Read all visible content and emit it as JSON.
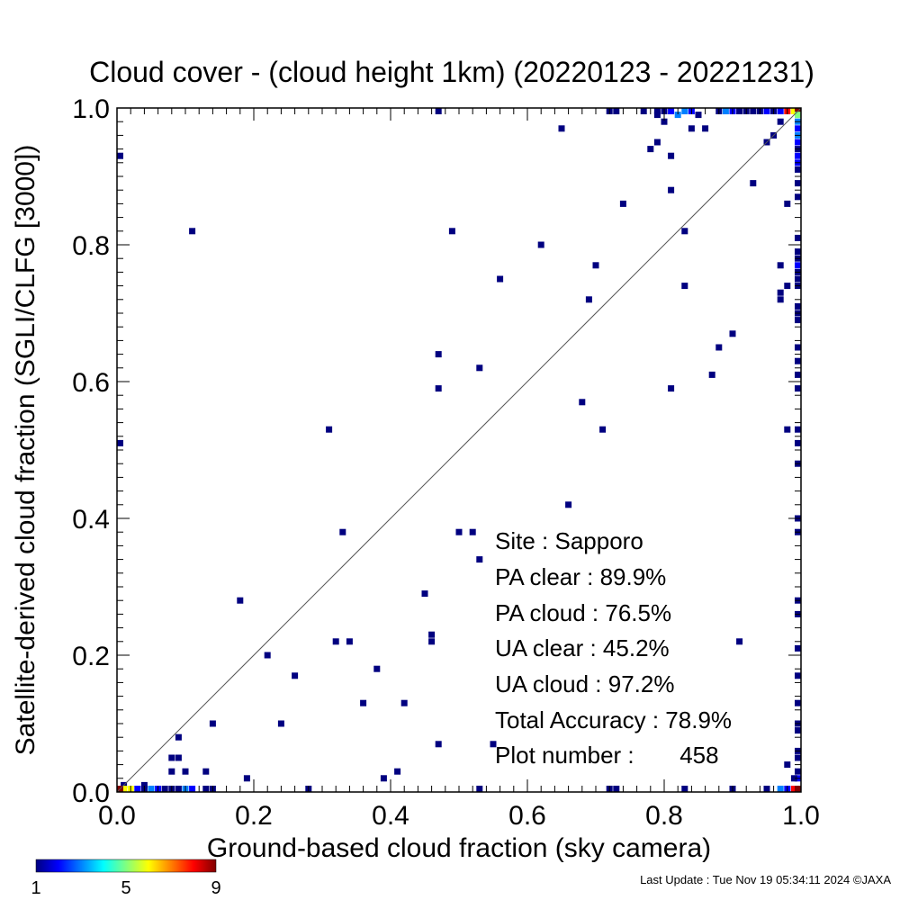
{
  "chart_data": {
    "type": "heatmap",
    "title": "Cloud cover - (cloud height 1km)  (20220123 - 20221231)",
    "xlabel": "Ground-based cloud fraction (sky camera)",
    "ylabel": "Satellite-derived cloud fraction (SGLI/CLFG [3000])",
    "xlim": [
      0,
      1
    ],
    "ylim": [
      0,
      1
    ],
    "xticks": [
      "0.0",
      "0.2",
      "0.4",
      "0.6",
      "0.8",
      "1.0"
    ],
    "yticks": [
      "0.0",
      "0.2",
      "0.4",
      "0.6",
      "0.8",
      "1.0"
    ],
    "grid": false,
    "reference_line": "y = x",
    "colorbar": {
      "range": [
        1,
        9
      ],
      "tick_labels": [
        "1",
        "5",
        "9"
      ],
      "colors": [
        "#000080",
        "#0000ff",
        "#0080ff",
        "#00ffff",
        "#80ff80",
        "#ffff00",
        "#ff8000",
        "#ff0000",
        "#800000"
      ]
    },
    "points": [
      {
        "x": 0.11,
        "y": 0.82,
        "c": 1
      },
      {
        "x": 0.49,
        "y": 0.82,
        "c": 1
      },
      {
        "x": 0.62,
        "y": 0.8,
        "c": 1
      },
      {
        "x": 0.56,
        "y": 0.75,
        "c": 1
      },
      {
        "x": 0.7,
        "y": 0.77,
        "c": 1
      },
      {
        "x": 0.69,
        "y": 0.72,
        "c": 1
      },
      {
        "x": 0.74,
        "y": 0.86,
        "c": 1
      },
      {
        "x": 0.83,
        "y": 0.82,
        "c": 1
      },
      {
        "x": 0.83,
        "y": 0.74,
        "c": 1
      },
      {
        "x": 0.81,
        "y": 0.88,
        "c": 1
      },
      {
        "x": 0.81,
        "y": 0.93,
        "c": 1
      },
      {
        "x": 0.78,
        "y": 0.94,
        "c": 1
      },
      {
        "x": 0.79,
        "y": 0.95,
        "c": 1
      },
      {
        "x": 0.65,
        "y": 0.97,
        "c": 1
      },
      {
        "x": 0.93,
        "y": 0.89,
        "c": 1
      },
      {
        "x": 0.47,
        "y": 0.64,
        "c": 1
      },
      {
        "x": 0.47,
        "y": 0.59,
        "c": 1
      },
      {
        "x": 0.53,
        "y": 0.62,
        "c": 1
      },
      {
        "x": 0.68,
        "y": 0.57,
        "c": 1
      },
      {
        "x": 0.71,
        "y": 0.53,
        "c": 1
      },
      {
        "x": 0.81,
        "y": 0.59,
        "c": 1
      },
      {
        "x": 0.87,
        "y": 0.61,
        "c": 1
      },
      {
        "x": 0.88,
        "y": 0.65,
        "c": 1
      },
      {
        "x": 0.9,
        "y": 0.67,
        "c": 1
      },
      {
        "x": 0.31,
        "y": 0.53,
        "c": 1
      },
      {
        "x": 0.66,
        "y": 0.42,
        "c": 1
      },
      {
        "x": 0.33,
        "y": 0.38,
        "c": 1
      },
      {
        "x": 0.5,
        "y": 0.38,
        "c": 1
      },
      {
        "x": 0.52,
        "y": 0.38,
        "c": 1
      },
      {
        "x": 0.53,
        "y": 0.34,
        "c": 1
      },
      {
        "x": 0.45,
        "y": 0.29,
        "c": 1
      },
      {
        "x": 0.18,
        "y": 0.28,
        "c": 1
      },
      {
        "x": 0.46,
        "y": 0.23,
        "c": 1
      },
      {
        "x": 0.46,
        "y": 0.22,
        "c": 1
      },
      {
        "x": 0.32,
        "y": 0.22,
        "c": 1
      },
      {
        "x": 0.34,
        "y": 0.22,
        "c": 1
      },
      {
        "x": 0.22,
        "y": 0.2,
        "c": 1
      },
      {
        "x": 0.38,
        "y": 0.18,
        "c": 1
      },
      {
        "x": 0.26,
        "y": 0.17,
        "c": 1
      },
      {
        "x": 0.36,
        "y": 0.13,
        "c": 1
      },
      {
        "x": 0.42,
        "y": 0.13,
        "c": 1
      },
      {
        "x": 0.14,
        "y": 0.1,
        "c": 1
      },
      {
        "x": 0.24,
        "y": 0.1,
        "c": 1
      },
      {
        "x": 0.09,
        "y": 0.08,
        "c": 1
      },
      {
        "x": 0.47,
        "y": 0.07,
        "c": 1
      },
      {
        "x": 0.55,
        "y": 0.07,
        "c": 1
      },
      {
        "x": 0.91,
        "y": 0.22,
        "c": 1
      },
      {
        "x": 0.08,
        "y": 0.05,
        "c": 1
      },
      {
        "x": 0.09,
        "y": 0.05,
        "c": 1
      },
      {
        "x": 0.08,
        "y": 0.03,
        "c": 1
      },
      {
        "x": 0.1,
        "y": 0.03,
        "c": 1
      },
      {
        "x": 0.13,
        "y": 0.03,
        "c": 1
      },
      {
        "x": 0.19,
        "y": 0.02,
        "c": 1
      },
      {
        "x": 0.39,
        "y": 0.02,
        "c": 1
      },
      {
        "x": 0.41,
        "y": 0.03,
        "c": 1
      },
      {
        "x": 0.04,
        "y": 0.01,
        "c": 1
      },
      {
        "x": 0.01,
        "y": 0.01,
        "c": 1
      },
      {
        "x": 0.0,
        "y": 0.51,
        "c": 1
      },
      {
        "x": 0.0,
        "y": 0.93,
        "c": 1
      },
      {
        "x": 0.47,
        "y": 1.0,
        "c": 1
      },
      {
        "x": 0.97,
        "y": 0.98,
        "c": 1
      },
      {
        "x": 0.96,
        "y": 0.96,
        "c": 1
      },
      {
        "x": 0.95,
        "y": 0.95,
        "c": 1
      },
      {
        "x": 0.98,
        "y": 0.86,
        "c": 1
      },
      {
        "x": 0.97,
        "y": 0.77,
        "c": 1
      },
      {
        "x": 0.97,
        "y": 0.73,
        "c": 1
      },
      {
        "x": 0.97,
        "y": 0.72,
        "c": 1
      },
      {
        "x": 0.98,
        "y": 0.74,
        "c": 1
      },
      {
        "x": 0.98,
        "y": 0.53,
        "c": 1
      },
      {
        "x": 0.98,
        "y": 0.04,
        "c": 1
      },
      {
        "x": 0.28,
        "y": 0.0,
        "c": 1
      },
      {
        "x": 0.53,
        "y": 0.0,
        "c": 1
      },
      {
        "x": 0.13,
        "y": 0.0,
        "c": 1
      },
      {
        "x": 0.14,
        "y": 0.0,
        "c": 1
      },
      {
        "x": 0.08,
        "y": 0.0,
        "c": 1
      },
      {
        "x": 0.09,
        "y": 0.0,
        "c": 1
      },
      {
        "x": 0.72,
        "y": 0.0,
        "c": 1
      },
      {
        "x": 0.73,
        "y": 0.0,
        "c": 1
      },
      {
        "x": 0.83,
        "y": 0.0,
        "c": 1
      },
      {
        "x": 0.9,
        "y": 0.0,
        "c": 1
      },
      {
        "x": 0.95,
        "y": 0.0,
        "c": 1
      },
      {
        "x": 0.03,
        "y": 0.0,
        "c": 2
      },
      {
        "x": 0.04,
        "y": 0.0,
        "c": 1
      },
      {
        "x": 0.05,
        "y": 0.0,
        "c": 3
      },
      {
        "x": 0.06,
        "y": 0.0,
        "c": 2
      },
      {
        "x": 0.07,
        "y": 0.0,
        "c": 1
      },
      {
        "x": 0.1,
        "y": 0.0,
        "c": 3
      },
      {
        "x": 0.11,
        "y": 0.0,
        "c": 2
      },
      {
        "x": 0.01,
        "y": 0.0,
        "c": 6
      },
      {
        "x": 0.02,
        "y": 0.0,
        "c": 6
      },
      {
        "x": 0.0,
        "y": 0.0,
        "c": 9
      },
      {
        "x": 0.97,
        "y": 0.0,
        "c": 3
      },
      {
        "x": 0.98,
        "y": 0.0,
        "c": 2
      },
      {
        "x": 0.99,
        "y": 0.0,
        "c": 8
      },
      {
        "x": 1.0,
        "y": 0.0,
        "c": 9
      },
      {
        "x": 0.72,
        "y": 1.0,
        "c": 1
      },
      {
        "x": 0.73,
        "y": 1.0,
        "c": 1
      },
      {
        "x": 0.77,
        "y": 1.0,
        "c": 1
      },
      {
        "x": 0.79,
        "y": 1.0,
        "c": 1
      },
      {
        "x": 0.8,
        "y": 1.0,
        "c": 1
      },
      {
        "x": 0.81,
        "y": 1.0,
        "c": 2
      },
      {
        "x": 0.83,
        "y": 1.0,
        "c": 3
      },
      {
        "x": 0.84,
        "y": 1.0,
        "c": 2
      },
      {
        "x": 0.88,
        "y": 1.0,
        "c": 1
      },
      {
        "x": 0.89,
        "y": 1.0,
        "c": 3
      },
      {
        "x": 0.9,
        "y": 1.0,
        "c": 2
      },
      {
        "x": 0.91,
        "y": 1.0,
        "c": 1
      },
      {
        "x": 0.92,
        "y": 1.0,
        "c": 1
      },
      {
        "x": 0.93,
        "y": 1.0,
        "c": 1
      },
      {
        "x": 0.94,
        "y": 1.0,
        "c": 1
      },
      {
        "x": 0.95,
        "y": 1.0,
        "c": 2
      },
      {
        "x": 0.96,
        "y": 1.0,
        "c": 1
      },
      {
        "x": 0.97,
        "y": 1.0,
        "c": 2
      },
      {
        "x": 0.98,
        "y": 1.0,
        "c": 8
      },
      {
        "x": 0.99,
        "y": 1.0,
        "c": 6
      },
      {
        "x": 1.0,
        "y": 1.0,
        "c": 9
      },
      {
        "x": 0.82,
        "y": 0.99,
        "c": 3
      },
      {
        "x": 0.8,
        "y": 0.98,
        "c": 1
      },
      {
        "x": 0.79,
        "y": 0.99,
        "c": 1
      },
      {
        "x": 0.85,
        "y": 0.99,
        "c": 1
      },
      {
        "x": 0.86,
        "y": 0.97,
        "c": 1
      },
      {
        "x": 0.84,
        "y": 0.97,
        "c": 1
      },
      {
        "x": 1.0,
        "y": 0.99,
        "c": 5
      },
      {
        "x": 1.0,
        "y": 0.98,
        "c": 3
      },
      {
        "x": 1.0,
        "y": 0.97,
        "c": 2
      },
      {
        "x": 1.0,
        "y": 0.96,
        "c": 3
      },
      {
        "x": 1.0,
        "y": 0.95,
        "c": 2
      },
      {
        "x": 1.0,
        "y": 0.94,
        "c": 1
      },
      {
        "x": 1.0,
        "y": 0.93,
        "c": 2
      },
      {
        "x": 1.0,
        "y": 0.92,
        "c": 2
      },
      {
        "x": 1.0,
        "y": 0.91,
        "c": 1
      },
      {
        "x": 1.0,
        "y": 0.89,
        "c": 1
      },
      {
        "x": 1.0,
        "y": 0.87,
        "c": 1
      },
      {
        "x": 1.0,
        "y": 0.81,
        "c": 1
      },
      {
        "x": 1.0,
        "y": 0.79,
        "c": 1
      },
      {
        "x": 1.0,
        "y": 0.78,
        "c": 1
      },
      {
        "x": 1.0,
        "y": 0.77,
        "c": 2
      },
      {
        "x": 1.0,
        "y": 0.76,
        "c": 1
      },
      {
        "x": 1.0,
        "y": 0.75,
        "c": 1
      },
      {
        "x": 1.0,
        "y": 0.74,
        "c": 1
      },
      {
        "x": 1.0,
        "y": 0.71,
        "c": 1
      },
      {
        "x": 1.0,
        "y": 0.7,
        "c": 1
      },
      {
        "x": 1.0,
        "y": 0.69,
        "c": 1
      },
      {
        "x": 1.0,
        "y": 0.65,
        "c": 1
      },
      {
        "x": 1.0,
        "y": 0.63,
        "c": 1
      },
      {
        "x": 1.0,
        "y": 0.61,
        "c": 1
      },
      {
        "x": 1.0,
        "y": 0.59,
        "c": 1
      },
      {
        "x": 1.0,
        "y": 0.53,
        "c": 1
      },
      {
        "x": 1.0,
        "y": 0.51,
        "c": 1
      },
      {
        "x": 1.0,
        "y": 0.48,
        "c": 1
      },
      {
        "x": 1.0,
        "y": 0.4,
        "c": 1
      },
      {
        "x": 1.0,
        "y": 0.38,
        "c": 1
      },
      {
        "x": 1.0,
        "y": 0.28,
        "c": 1
      },
      {
        "x": 1.0,
        "y": 0.26,
        "c": 1
      },
      {
        "x": 1.0,
        "y": 0.21,
        "c": 1
      },
      {
        "x": 1.0,
        "y": 0.17,
        "c": 1
      },
      {
        "x": 1.0,
        "y": 0.13,
        "c": 1
      },
      {
        "x": 1.0,
        "y": 0.1,
        "c": 1
      },
      {
        "x": 1.0,
        "y": 0.09,
        "c": 1
      },
      {
        "x": 1.0,
        "y": 0.06,
        "c": 1
      },
      {
        "x": 1.0,
        "y": 0.05,
        "c": 1
      },
      {
        "x": 1.0,
        "y": 0.03,
        "c": 1
      },
      {
        "x": 1.0,
        "y": 0.02,
        "c": 2
      },
      {
        "x": 0.99,
        "y": 0.02,
        "c": 1
      }
    ]
  },
  "stats": {
    "site": "Site : Sapporo",
    "pa_clear": "PA clear :  89.9%",
    "pa_cloud": "PA cloud :  76.5%",
    "ua_clear": "UA clear :  45.2%",
    "ua_cloud": "UA cloud :  97.2%",
    "total_accuracy": "Total Accuracy :  78.9%",
    "plot_number": "Plot number :       458"
  },
  "footer": {
    "last_update": "Last Update : Tue Nov 19 05:34:11 2024  ©JAXA"
  }
}
